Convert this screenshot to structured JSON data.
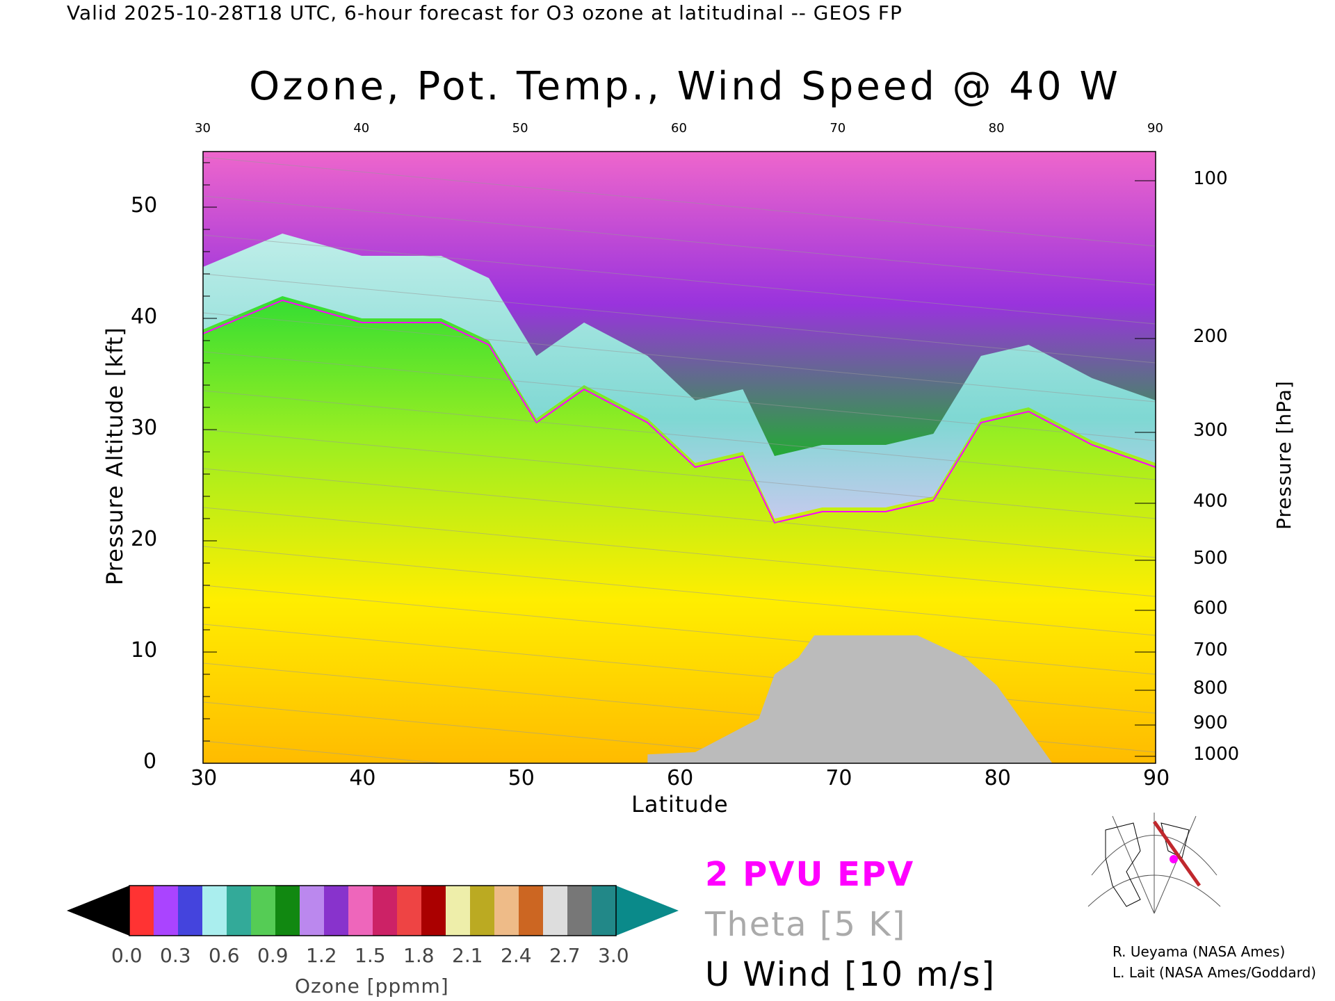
{
  "header": {
    "valid_line": "Valid 2025-10-28T18 UTC, 6-hour forecast for O3 ozone at latitudinal -- GEOS FP"
  },
  "title": "Ozone, Pot. Temp., Wind Speed @ 40 W",
  "axes": {
    "x_label": "Latitude",
    "y_left_label": "Pressure Altitude [kft]",
    "y_right_label": "Pressure [hPa]",
    "x_ticks": [
      "30",
      "40",
      "50",
      "60",
      "70",
      "80",
      "90"
    ],
    "y_left_ticks": [
      "0",
      "10",
      "20",
      "30",
      "40",
      "50"
    ],
    "y_right_ticks": [
      "100",
      "200",
      "300",
      "400",
      "500",
      "600",
      "700",
      "800",
      "900",
      "1000"
    ]
  },
  "legend": {
    "epv": "2 PVU EPV",
    "theta": "Theta [5 K]",
    "uwind": "U Wind [10 m/s]",
    "epv_color": "#ff00ff",
    "theta_color": "#aaaaaa"
  },
  "colorbar": {
    "label": "Ozone [ppmm]",
    "ticks": [
      "0.0",
      "0.3",
      "0.6",
      "0.9",
      "1.2",
      "1.5",
      "1.8",
      "2.1",
      "2.4",
      "2.7",
      "3.0"
    ]
  },
  "credits": {
    "line1": "R. Ueyama (NASA Ames)",
    "line2": "L. Lait (NASA Ames/Goddard)"
  },
  "chart_data": {
    "type": "heatmap",
    "title": "Ozone, Pot. Temp., Wind Speed @ 40 W",
    "xlabel": "Latitude",
    "ylabel": "Pressure Altitude [kft]",
    "y2label": "Pressure [hPa]",
    "xlim": [
      30,
      90
    ],
    "ylim": [
      0,
      55
    ],
    "colorbar_range": [
      0.0,
      3.0
    ],
    "colorbar_label": "Ozone [ppmm]",
    "tropopause_kft": [
      {
        "lat": 30,
        "kft": 39
      },
      {
        "lat": 35,
        "kft": 42
      },
      {
        "lat": 40,
        "kft": 40
      },
      {
        "lat": 45,
        "kft": 40
      },
      {
        "lat": 48,
        "kft": 38
      },
      {
        "lat": 51,
        "kft": 31
      },
      {
        "lat": 54,
        "kft": 34
      },
      {
        "lat": 58,
        "kft": 31
      },
      {
        "lat": 61,
        "kft": 27
      },
      {
        "lat": 64,
        "kft": 28
      },
      {
        "lat": 66,
        "kft": 22
      },
      {
        "lat": 69,
        "kft": 23
      },
      {
        "lat": 73,
        "kft": 23
      },
      {
        "lat": 76,
        "kft": 24
      },
      {
        "lat": 79,
        "kft": 31
      },
      {
        "lat": 82,
        "kft": 32
      },
      {
        "lat": 86,
        "kft": 29
      },
      {
        "lat": 90,
        "kft": 27
      }
    ],
    "surface_kft": [
      {
        "lat": 58,
        "kft": 0.8
      },
      {
        "lat": 61,
        "kft": 1.0
      },
      {
        "lat": 65,
        "kft": 4
      },
      {
        "lat": 66,
        "kft": 8
      },
      {
        "lat": 67.5,
        "kft": 9.5
      },
      {
        "lat": 68.5,
        "kft": 11.5
      },
      {
        "lat": 75,
        "kft": 11.5
      },
      {
        "lat": 78,
        "kft": 9.5
      },
      {
        "lat": 80,
        "kft": 7
      },
      {
        "lat": 82,
        "kft": 3
      },
      {
        "lat": 83.5,
        "kft": 0
      }
    ]
  }
}
